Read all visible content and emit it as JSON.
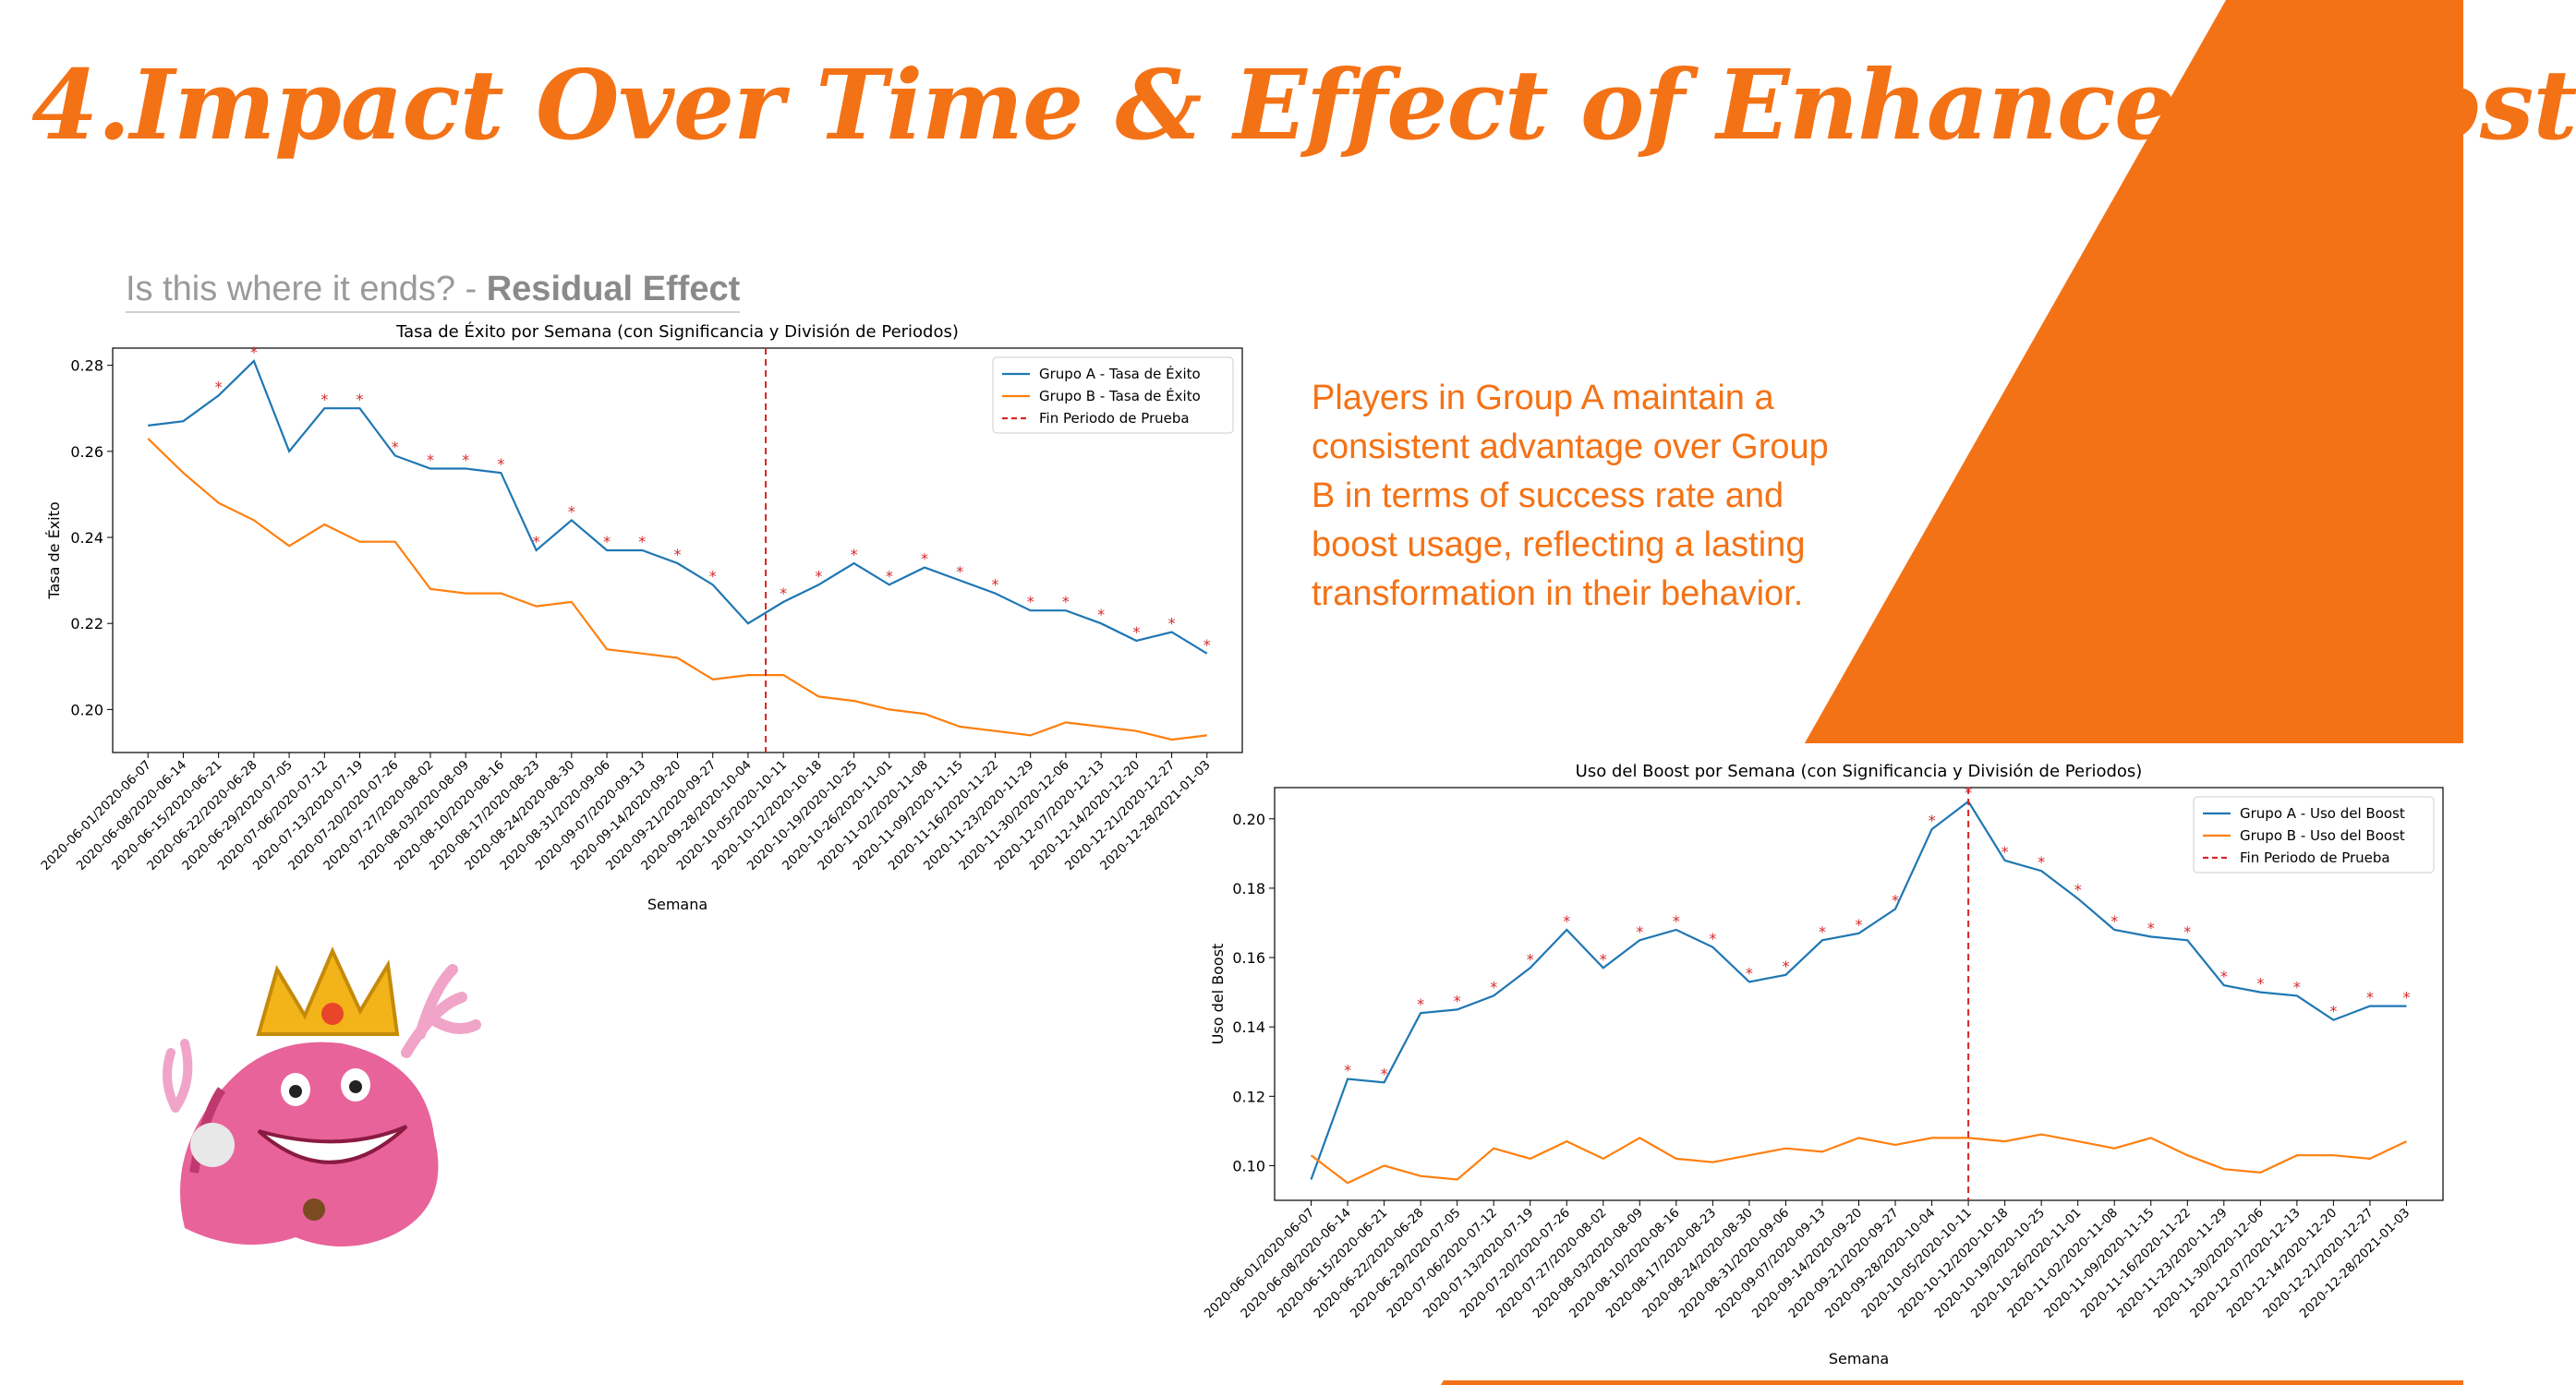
{
  "slide": {
    "title": "4.Impact Over Time & Effect of Enhanced Boost",
    "subtitle_plain": "Is this where it ends? - ",
    "subtitle_bold": "Residual Effect",
    "insight": "Players in Group A maintain a consistent advantage over Group B in terms of success rate and boost usage, reflecting a lasting transformation in their behavior."
  },
  "colors": {
    "accent": "#f47216",
    "group_a": "#1f77b4",
    "group_b": "#ff7f0e",
    "divider": "#d62728"
  },
  "chart_data": [
    {
      "type": "line",
      "title": "Tasa de Éxito por Semana (con Significancia y División de Periodos)",
      "xlabel": "Semana",
      "ylabel": "Tasa de Éxito",
      "ylim": [
        0.19,
        0.284
      ],
      "yticks": [
        "0.20",
        "0.22",
        "0.24",
        "0.26",
        "0.28"
      ],
      "categories": [
        "2020-06-01/2020-06-07",
        "2020-06-08/2020-06-14",
        "2020-06-15/2020-06-21",
        "2020-06-22/2020-06-28",
        "2020-06-29/2020-07-05",
        "2020-07-06/2020-07-12",
        "2020-07-13/2020-07-19",
        "2020-07-20/2020-07-26",
        "2020-07-27/2020-08-02",
        "2020-08-03/2020-08-09",
        "2020-08-10/2020-08-16",
        "2020-08-17/2020-08-23",
        "2020-08-24/2020-08-30",
        "2020-08-31/2020-09-06",
        "2020-09-07/2020-09-13",
        "2020-09-14/2020-09-20",
        "2020-09-21/2020-09-27",
        "2020-09-28/2020-10-04",
        "2020-10-05/2020-10-11",
        "2020-10-12/2020-10-18",
        "2020-10-19/2020-10-25",
        "2020-10-26/2020-11-01",
        "2020-11-02/2020-11-08",
        "2020-11-09/2020-11-15",
        "2020-11-16/2020-11-22",
        "2020-11-23/2020-11-29",
        "2020-11-30/2020-12-06",
        "2020-12-07/2020-12-13",
        "2020-12-14/2020-12-20",
        "2020-12-21/2020-12-27",
        "2020-12-28/2021-01-03"
      ],
      "series": [
        {
          "name": "Grupo A - Tasa de Éxito",
          "values": [
            0.266,
            0.267,
            0.273,
            0.281,
            0.26,
            0.27,
            0.27,
            0.259,
            0.256,
            0.256,
            0.255,
            0.237,
            0.244,
            0.237,
            0.237,
            0.234,
            0.229,
            0.22,
            0.225,
            0.229,
            0.234,
            0.229,
            0.233,
            0.23,
            0.227,
            0.223,
            0.223,
            0.22,
            0.216,
            0.218,
            0.213
          ]
        },
        {
          "name": "Grupo B - Tasa de Éxito",
          "values": [
            0.263,
            0.255,
            0.248,
            0.244,
            0.238,
            0.243,
            0.239,
            0.239,
            0.228,
            0.227,
            0.227,
            0.224,
            0.225,
            0.214,
            0.213,
            0.212,
            0.207,
            0.208,
            0.208,
            0.203,
            0.202,
            0.2,
            0.199,
            0.196,
            0.195,
            0.194,
            0.197,
            0.196,
            0.195,
            0.193,
            0.194
          ]
        }
      ],
      "significant_a": [
        false,
        false,
        true,
        true,
        false,
        true,
        true,
        true,
        true,
        true,
        true,
        true,
        true,
        true,
        true,
        true,
        true,
        false,
        true,
        true,
        true,
        true,
        true,
        true,
        true,
        true,
        true,
        true,
        true,
        true,
        true
      ],
      "divider_index": 17.5,
      "legend": [
        "Grupo A - Tasa de Éxito",
        "Grupo B - Tasa de Éxito",
        "Fin Periodo de Prueba"
      ],
      "legend_position": "top-right",
      "grid": false
    },
    {
      "type": "line",
      "title": "Uso del Boost por Semana (con Significancia y División de Periodos)",
      "xlabel": "Semana",
      "ylabel": "Uso del Boost",
      "ylim": [
        0.09,
        0.209
      ],
      "yticks": [
        "0.10",
        "0.12",
        "0.14",
        "0.16",
        "0.18",
        "0.20"
      ],
      "categories": [
        "2020-06-01/2020-06-07",
        "2020-06-08/2020-06-14",
        "2020-06-15/2020-06-21",
        "2020-06-22/2020-06-28",
        "2020-06-29/2020-07-05",
        "2020-07-06/2020-07-12",
        "2020-07-13/2020-07-19",
        "2020-07-20/2020-07-26",
        "2020-07-27/2020-08-02",
        "2020-08-03/2020-08-09",
        "2020-08-10/2020-08-16",
        "2020-08-17/2020-08-23",
        "2020-08-24/2020-08-30",
        "2020-08-31/2020-09-06",
        "2020-09-07/2020-09-13",
        "2020-09-14/2020-09-20",
        "2020-09-21/2020-09-27",
        "2020-09-28/2020-10-04",
        "2020-10-05/2020-10-11",
        "2020-10-12/2020-10-18",
        "2020-10-19/2020-10-25",
        "2020-10-26/2020-11-01",
        "2020-11-02/2020-11-08",
        "2020-11-09/2020-11-15",
        "2020-11-16/2020-11-22",
        "2020-11-23/2020-11-29",
        "2020-11-30/2020-12-06",
        "2020-12-07/2020-12-13",
        "2020-12-14/2020-12-20",
        "2020-12-21/2020-12-27",
        "2020-12-28/2021-01-03"
      ],
      "series": [
        {
          "name": "Grupo A - Uso del Boost",
          "values": [
            0.096,
            0.125,
            0.124,
            0.144,
            0.145,
            0.149,
            0.157,
            0.168,
            0.157,
            0.165,
            0.168,
            0.163,
            0.153,
            0.155,
            0.165,
            0.167,
            0.174,
            0.197,
            0.205,
            0.188,
            0.185,
            0.177,
            0.168,
            0.166,
            0.165,
            0.152,
            0.15,
            0.149,
            0.142,
            0.146,
            0.146
          ]
        },
        {
          "name": "Grupo B - Uso del Boost",
          "values": [
            0.103,
            0.095,
            0.1,
            0.097,
            0.096,
            0.105,
            0.102,
            0.107,
            0.102,
            0.108,
            0.102,
            0.101,
            0.103,
            0.105,
            0.104,
            0.108,
            0.106,
            0.108,
            0.108,
            0.107,
            0.109,
            0.107,
            0.105,
            0.108,
            0.103,
            0.099,
            0.098,
            0.103,
            0.103,
            0.102,
            0.107
          ]
        }
      ],
      "significant_a": [
        false,
        true,
        true,
        true,
        true,
        true,
        true,
        true,
        true,
        true,
        true,
        true,
        true,
        true,
        true,
        true,
        true,
        true,
        true,
        true,
        true,
        true,
        true,
        true,
        true,
        true,
        true,
        true,
        true,
        true,
        true
      ],
      "divider_index": 18,
      "legend": [
        "Grupo A - Uso del Boost",
        "Grupo B - Uso del Boost",
        "Fin Periodo de Prueba"
      ],
      "legend_position": "top-right",
      "grid": false
    }
  ]
}
